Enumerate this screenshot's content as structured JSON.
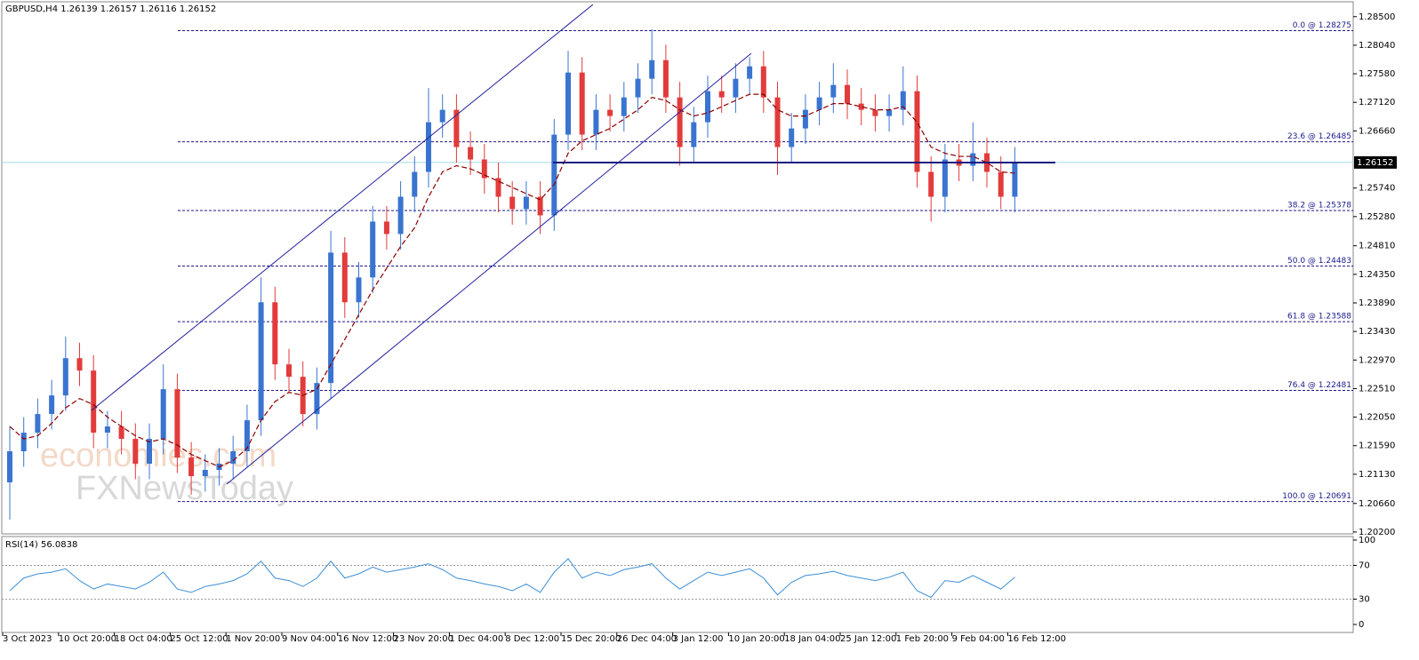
{
  "chart_data": [
    {
      "type": "candlestick",
      "title": "GBPUSD,H4  1.26139 1.26157 1.26116 1.26152",
      "categories": [
        "3 Oct 2023",
        null,
        null,
        null,
        "10 Oct 20:00",
        null,
        null,
        null,
        "18 Oct 04:00",
        null,
        null,
        null,
        "25 Oct 12:00",
        null,
        null,
        null,
        "1 Nov 20:00",
        null,
        null,
        null,
        "9 Nov 04:00",
        null,
        null,
        null,
        "16 Nov 12:00",
        null,
        null,
        null,
        "23 Nov 20:00",
        null,
        null,
        null,
        "1 Dec 04:00",
        null,
        null,
        null,
        "8 Dec 12:00",
        null,
        null,
        null,
        "15 Dec 20:00",
        null,
        null,
        null,
        "26 Dec 04:00",
        null,
        null,
        null,
        "3 Jan 12:00",
        null,
        null,
        null,
        "10 Jan 20:00",
        null,
        null,
        null,
        "18 Jan 04:00",
        null,
        null,
        null,
        "25 Jan 12:00",
        null,
        null,
        null,
        "1 Feb 20:00",
        null,
        null,
        null,
        "9 Feb 04:00",
        null,
        null,
        null,
        "16 Feb 12:00"
      ],
      "open": [
        1.21,
        1.215,
        1.218,
        1.221,
        1.224,
        1.23,
        1.228,
        1.218,
        1.219,
        1.217,
        1.213,
        1.217,
        1.225,
        1.214,
        1.211,
        1.212,
        1.213,
        1.215,
        1.22,
        1.239,
        1.229,
        1.227,
        1.221,
        1.226,
        1.247,
        1.239,
        1.243,
        1.252,
        1.25,
        1.256,
        1.26,
        1.268,
        1.27,
        1.264,
        1.262,
        1.259,
        1.256,
        1.254,
        1.256,
        1.253,
        1.266,
        1.276,
        1.266,
        1.27,
        1.269,
        1.272,
        1.275,
        1.278,
        1.272,
        1.264,
        1.268,
        1.273,
        1.272,
        1.275,
        1.277,
        1.272,
        1.264,
        1.267,
        1.27,
        1.272,
        1.274,
        1.271,
        1.27,
        1.269,
        1.27,
        1.273,
        1.26,
        1.256,
        1.262,
        1.261,
        1.263,
        1.26,
        1.256
      ],
      "high": [
        1.219,
        1.2205,
        1.2235,
        1.2265,
        1.2335,
        1.2325,
        1.2305,
        1.2215,
        1.2215,
        1.2195,
        1.2195,
        1.229,
        1.2275,
        1.2165,
        1.2145,
        1.2155,
        1.2175,
        1.2225,
        1.243,
        1.2415,
        1.2315,
        1.2295,
        1.2285,
        1.2505,
        1.2495,
        1.2455,
        1.2545,
        1.2545,
        1.2585,
        1.2625,
        1.2735,
        1.2725,
        1.2725,
        1.2665,
        1.2645,
        1.2615,
        1.2585,
        1.2585,
        1.2585,
        1.2685,
        1.2795,
        1.2785,
        1.2725,
        1.2725,
        1.2745,
        1.2775,
        1.283,
        1.2805,
        1.2745,
        1.2705,
        1.2755,
        1.2755,
        1.2775,
        1.2785,
        1.2795,
        1.2745,
        1.2695,
        1.2725,
        1.2745,
        1.2775,
        1.2765,
        1.2735,
        1.2725,
        1.2725,
        1.277,
        1.2755,
        1.2625,
        1.2645,
        1.2645,
        1.268,
        1.2655,
        1.2625,
        1.264
      ],
      "low": [
        1.204,
        1.2125,
        1.2155,
        1.2185,
        1.2215,
        1.2255,
        1.2155,
        1.2155,
        1.2145,
        1.2105,
        1.2105,
        1.2145,
        1.2115,
        1.208,
        1.2085,
        1.2095,
        1.2105,
        1.2125,
        1.2175,
        1.2265,
        1.2245,
        1.219,
        1.2185,
        1.2235,
        1.2365,
        1.2365,
        1.2405,
        1.2475,
        1.2475,
        1.2535,
        1.2575,
        1.2655,
        1.2615,
        1.2595,
        1.2565,
        1.2535,
        1.2515,
        1.2515,
        1.25,
        1.2505,
        1.2635,
        1.2635,
        1.2635,
        1.2665,
        1.2665,
        1.2695,
        1.2725,
        1.2695,
        1.261,
        1.2615,
        1.2655,
        1.2695,
        1.2695,
        1.2725,
        1.2695,
        1.2595,
        1.2615,
        1.2645,
        1.2675,
        1.2695,
        1.2685,
        1.2675,
        1.2665,
        1.2665,
        1.2675,
        1.2575,
        1.252,
        1.2535,
        1.2585,
        1.2585,
        1.2575,
        1.254,
        1.2535
      ],
      "close": [
        1.215,
        1.218,
        1.221,
        1.224,
        1.23,
        1.228,
        1.218,
        1.219,
        1.217,
        1.213,
        1.217,
        1.225,
        1.214,
        1.211,
        1.212,
        1.213,
        1.215,
        1.22,
        1.239,
        1.229,
        1.227,
        1.221,
        1.226,
        1.247,
        1.239,
        1.243,
        1.252,
        1.25,
        1.256,
        1.26,
        1.268,
        1.27,
        1.264,
        1.262,
        1.259,
        1.256,
        1.254,
        1.256,
        1.253,
        1.266,
        1.276,
        1.266,
        1.27,
        1.269,
        1.272,
        1.275,
        1.278,
        1.272,
        1.264,
        1.268,
        1.273,
        1.272,
        1.275,
        1.277,
        1.272,
        1.264,
        1.267,
        1.27,
        1.272,
        1.274,
        1.271,
        1.27,
        1.269,
        1.27,
        1.273,
        1.26,
        1.256,
        1.262,
        1.261,
        1.263,
        1.26,
        1.256,
        1.2615
      ],
      "moving_average": [
        1.219,
        1.217,
        1.2175,
        1.2195,
        1.222,
        1.2235,
        1.2225,
        1.2205,
        1.219,
        1.2175,
        1.2165,
        1.217,
        1.216,
        1.2145,
        1.2135,
        1.2125,
        1.2135,
        1.2155,
        1.22,
        1.223,
        1.2245,
        1.224,
        1.225,
        1.229,
        1.233,
        1.237,
        1.241,
        1.2445,
        1.248,
        1.251,
        1.256,
        1.26,
        1.261,
        1.2605,
        1.2595,
        1.2585,
        1.2575,
        1.2565,
        1.2555,
        1.258,
        1.263,
        1.265,
        1.266,
        1.267,
        1.2685,
        1.27,
        1.272,
        1.2715,
        1.27,
        1.269,
        1.2695,
        1.2705,
        1.2715,
        1.2725,
        1.2725,
        1.27,
        1.269,
        1.269,
        1.27,
        1.271,
        1.271,
        1.2705,
        1.27,
        1.27,
        1.2705,
        1.268,
        1.264,
        1.263,
        1.2625,
        1.2625,
        1.2615,
        1.26,
        1.2598
      ],
      "up_color": "#3a74d0",
      "down_color": "#e23b3b",
      "ma_color": "#8b0000",
      "ylim": [
        1.2017,
        1.2874
      ],
      "yticks": [
        {
          "value": 1.285,
          "label": "1.28500"
        },
        {
          "value": 1.2804,
          "label": "1.28040"
        },
        {
          "value": 1.2758,
          "label": "1.27580"
        },
        {
          "value": 1.2712,
          "label": "1.27120"
        },
        {
          "value": 1.2666,
          "label": "1.26660"
        },
        {
          "value": 1.2574,
          "label": "1.25740"
        },
        {
          "value": 1.2528,
          "label": "1.25280"
        },
        {
          "value": 1.2481,
          "label": "1.24810"
        },
        {
          "value": 1.2435,
          "label": "1.24350"
        },
        {
          "value": 1.2389,
          "label": "1.23890"
        },
        {
          "value": 1.2343,
          "label": "1.23430"
        },
        {
          "value": 1.2297,
          "label": "1.22970"
        },
        {
          "value": 1.2251,
          "label": "1.22510"
        },
        {
          "value": 1.2205,
          "label": "1.22050"
        },
        {
          "value": 1.2159,
          "label": "1.21590"
        },
        {
          "value": 1.2113,
          "label": "1.21130"
        },
        {
          "value": 1.2066,
          "label": "1.20660"
        },
        {
          "value": 1.202,
          "label": "1.20200"
        }
      ],
      "fib_levels": [
        {
          "value": 1.28275,
          "label": "0.0 @ 1.28275"
        },
        {
          "value": 1.26485,
          "label": "23.6 @ 1.26485"
        },
        {
          "value": 1.25378,
          "label": "38.2 @ 1.25378"
        },
        {
          "value": 1.24483,
          "label": "50.0 @ 1.24483"
        },
        {
          "value": 1.23588,
          "label": "61.8 @ 1.23588"
        },
        {
          "value": 1.22481,
          "label": "76.4 @ 1.22481"
        },
        {
          "value": 1.20691,
          "label": "100.0 @ 1.20691"
        }
      ],
      "last_price": {
        "value": 1.26152,
        "label": "1.26152"
      },
      "watermark": [
        "economies.com",
        "FXNewsToday"
      ]
    },
    {
      "type": "line",
      "title": "RSI(14) 56.0838",
      "values": [
        40,
        55,
        60,
        62,
        66,
        52,
        42,
        48,
        45,
        42,
        50,
        62,
        42,
        38,
        45,
        48,
        52,
        60,
        75,
        55,
        52,
        45,
        55,
        75,
        55,
        60,
        68,
        62,
        65,
        68,
        72,
        65,
        55,
        52,
        48,
        45,
        40,
        48,
        38,
        62,
        78,
        55,
        62,
        58,
        65,
        68,
        72,
        55,
        42,
        52,
        62,
        58,
        62,
        66,
        55,
        35,
        50,
        58,
        60,
        63,
        58,
        55,
        52,
        56,
        62,
        40,
        32,
        52,
        50,
        58,
        50,
        42,
        56
      ],
      "color": "#3d8fd6",
      "ylim": [
        0,
        100
      ],
      "yticks": [
        100,
        70,
        30,
        0
      ],
      "level_lines": [
        70,
        30
      ]
    }
  ]
}
